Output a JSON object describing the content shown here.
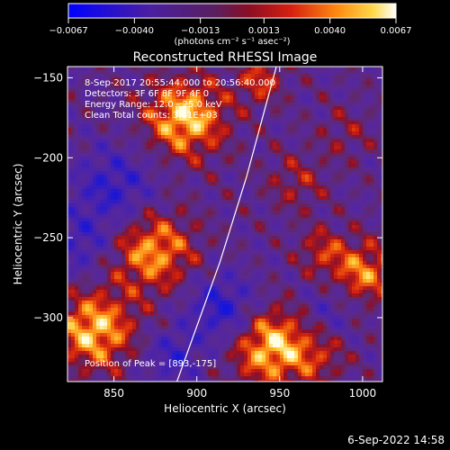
{
  "chart_data": {
    "type": "heatmap",
    "title": "Reconstructed RHESSI Image",
    "xlabel": "Heliocentric X (arcsec)",
    "ylabel": "Heliocentric Y (arcsec)",
    "xlim": [
      822,
      1012
    ],
    "ylim": [
      -340,
      -143
    ],
    "xticks": [
      850,
      900,
      950,
      1000
    ],
    "xtick_labels": [
      "850",
      "900",
      "950",
      "1000"
    ],
    "yticks": [
      -150,
      -200,
      -250,
      -300
    ],
    "ytick_labels": [
      "-150",
      "-200",
      "-250",
      "-300"
    ],
    "colorbar": {
      "range": [
        -0.0067,
        0.0067
      ],
      "ticks": [
        -0.0067,
        -0.004,
        -0.0013,
        0.0013,
        0.004,
        0.0067
      ],
      "tick_labels": [
        "-0.0067",
        "-0.0040",
        "-0.0013",
        "0.0013",
        "0.0040",
        "0.0067"
      ],
      "unit_label": "(photons cm⁻² s⁻¹ asec⁻²)",
      "colormap": "blue-purple-red-orange-yellow-white"
    },
    "annotations": {
      "time_range": "8-Sep-2017 20:55:44.000 to 20:56:40.000",
      "detectors": "Detectors: 3F 6F 8F 9F 4F 0",
      "energy": "Energy Range: 12.0 - 25.0 keV",
      "method": "Clean    Total counts: 3.11E+03",
      "peak": "Position of Peak = [893,-175]"
    },
    "peak": [
      893,
      -175
    ],
    "limb_arc": [
      [
        888,
        -340
      ],
      [
        914,
        -265
      ],
      [
        930,
        -212
      ],
      [
        943,
        -162
      ],
      [
        948,
        -143
      ]
    ],
    "blobs": [
      {
        "x": 893,
        "y": -175,
        "amp": 1.0,
        "s": 17
      },
      {
        "x": 938,
        "y": -152,
        "amp": 0.55,
        "s": 10
      },
      {
        "x": 873,
        "y": -258,
        "amp": 0.85,
        "s": 18
      },
      {
        "x": 945,
        "y": -318,
        "amp": 1.0,
        "s": 17
      },
      {
        "x": 838,
        "y": -308,
        "amp": 0.95,
        "s": 17
      },
      {
        "x": 1000,
        "y": -272,
        "amp": 0.75,
        "s": 14
      },
      {
        "x": 975,
        "y": -258,
        "amp": 0.45,
        "s": 10
      },
      {
        "x": 960,
        "y": -215,
        "amp": 0.35,
        "s": 13
      },
      {
        "x": 990,
        "y": -185,
        "amp": 0.25,
        "s": 12
      },
      {
        "x": 975,
        "y": -325,
        "amp": 0.35,
        "s": 12
      },
      {
        "x": 850,
        "y": -220,
        "amp": -0.6,
        "s": 18
      },
      {
        "x": 915,
        "y": -295,
        "amp": -0.7,
        "s": 15
      },
      {
        "x": 885,
        "y": -325,
        "amp": -0.5,
        "s": 12
      },
      {
        "x": 980,
        "y": -295,
        "amp": -0.35,
        "s": 12
      },
      {
        "x": 830,
        "y": -255,
        "amp": -0.45,
        "s": 14
      }
    ]
  },
  "footer": {
    "timestamp": "6-Sep-2022 14:58"
  }
}
